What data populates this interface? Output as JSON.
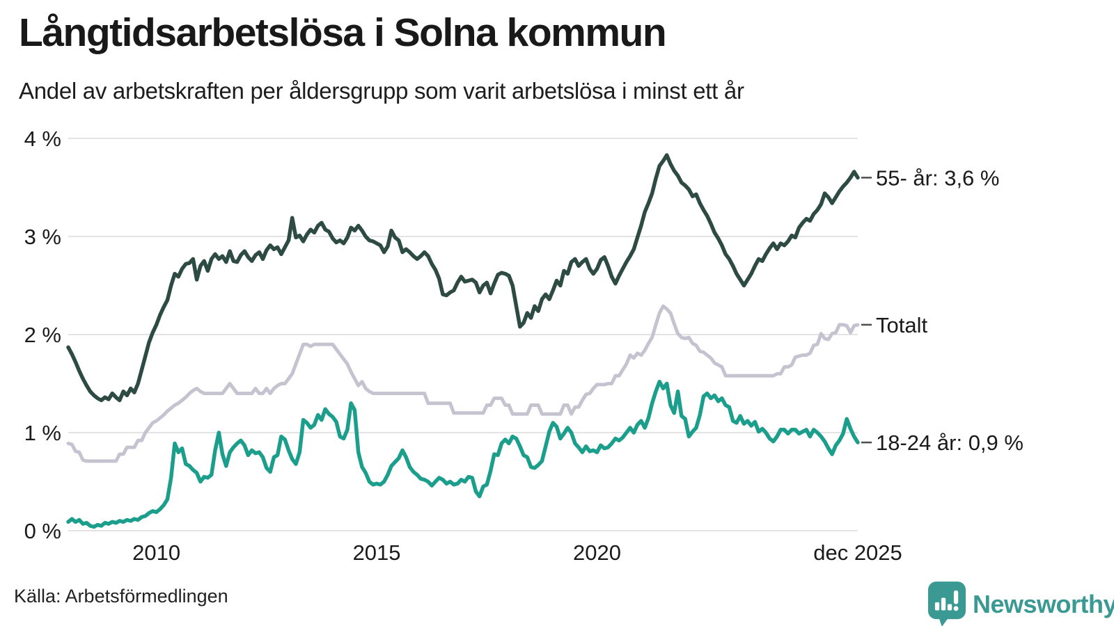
{
  "header": {
    "title": "Långtidsarbetslösa i Solna kommun",
    "subtitle": "Andel av arbetskraften per åldersgrupp som varit arbetslösa i minst ett år"
  },
  "footer": {
    "source": "Källa: Arbetsförmedlingen",
    "brand": "Newsworthy",
    "brand_color": "#3a9a93"
  },
  "chart_data": {
    "type": "line",
    "title": "Långtidsarbetslösa i Solna kommun",
    "xlabel": "",
    "ylabel": "",
    "ylim": [
      0,
      4
    ],
    "grid": true,
    "grid_color": "#e3e3e6",
    "tick_color": "#1a1a1a",
    "end_label_dash_color": "#4d4d4d",
    "x_start_year": 2008.0,
    "x_end_year": 2025.9167,
    "x_ticks": [
      {
        "label": "2010",
        "year": 2010
      },
      {
        "label": "2015",
        "year": 2015
      },
      {
        "label": "2020",
        "year": 2020
      },
      {
        "label": "dec 2025",
        "year": 2025.9167
      }
    ],
    "y_ticks": [
      {
        "label": "0 %",
        "value": 0
      },
      {
        "label": "1 %",
        "value": 1
      },
      {
        "label": "2 %",
        "value": 2
      },
      {
        "label": "3 %",
        "value": 3
      },
      {
        "label": "4 %",
        "value": 4
      }
    ],
    "series": [
      {
        "name": "Totalt",
        "end_label": "Totalt",
        "color": "#c6c3d0",
        "width": 5,
        "values": [
          0.89,
          0.88,
          0.81,
          0.8,
          0.72,
          0.71,
          0.71,
          0.71,
          0.71,
          0.71,
          0.71,
          0.71,
          0.71,
          0.71,
          0.78,
          0.78,
          0.85,
          0.85,
          0.85,
          0.92,
          0.92,
          1.0,
          1.05,
          1.1,
          1.12,
          1.15,
          1.18,
          1.22,
          1.25,
          1.28,
          1.3,
          1.33,
          1.36,
          1.4,
          1.43,
          1.45,
          1.42,
          1.4,
          1.4,
          1.4,
          1.4,
          1.4,
          1.4,
          1.45,
          1.5,
          1.45,
          1.4,
          1.4,
          1.4,
          1.4,
          1.4,
          1.45,
          1.4,
          1.4,
          1.45,
          1.4,
          1.45,
          1.48,
          1.5,
          1.5,
          1.55,
          1.6,
          1.7,
          1.8,
          1.9,
          1.9,
          1.88,
          1.9,
          1.9,
          1.9,
          1.9,
          1.9,
          1.9,
          1.85,
          1.8,
          1.75,
          1.7,
          1.62,
          1.55,
          1.48,
          1.52,
          1.45,
          1.42,
          1.4,
          1.4,
          1.4,
          1.4,
          1.4,
          1.4,
          1.4,
          1.4,
          1.4,
          1.4,
          1.4,
          1.4,
          1.4,
          1.4,
          1.4,
          1.3,
          1.3,
          1.3,
          1.3,
          1.3,
          1.3,
          1.3,
          1.2,
          1.2,
          1.2,
          1.2,
          1.2,
          1.2,
          1.2,
          1.2,
          1.2,
          1.28,
          1.28,
          1.35,
          1.35,
          1.35,
          1.28,
          1.28,
          1.19,
          1.19,
          1.19,
          1.19,
          1.19,
          1.28,
          1.28,
          1.28,
          1.19,
          1.19,
          1.19,
          1.19,
          1.19,
          1.19,
          1.28,
          1.28,
          1.19,
          1.26,
          1.26,
          1.33,
          1.39,
          1.4,
          1.45,
          1.49,
          1.49,
          1.49,
          1.5,
          1.5,
          1.58,
          1.58,
          1.64,
          1.7,
          1.79,
          1.76,
          1.81,
          1.79,
          1.84,
          1.91,
          1.97,
          2.1,
          2.22,
          2.29,
          2.26,
          2.22,
          2.11,
          2.01,
          1.97,
          1.96,
          1.97,
          1.91,
          1.89,
          1.83,
          1.82,
          1.79,
          1.76,
          1.71,
          1.69,
          1.67,
          1.58,
          1.58,
          1.58,
          1.58,
          1.58,
          1.58,
          1.58,
          1.58,
          1.58,
          1.58,
          1.58,
          1.58,
          1.58,
          1.58,
          1.6,
          1.6,
          1.67,
          1.67,
          1.69,
          1.77,
          1.78,
          1.79,
          1.79,
          1.81,
          1.89,
          1.9,
          2.01,
          1.96,
          1.95,
          2.01,
          2.02,
          2.1,
          2.1,
          2.09,
          2.02,
          2.09,
          2.1
        ]
      },
      {
        "name": "18-24 år",
        "end_label": "18-24 år: 0,9 %",
        "color": "#1b9e8b",
        "width": 5.5,
        "values": [
          0.09,
          0.12,
          0.09,
          0.11,
          0.07,
          0.08,
          0.05,
          0.04,
          0.06,
          0.05,
          0.08,
          0.07,
          0.09,
          0.08,
          0.1,
          0.09,
          0.11,
          0.1,
          0.12,
          0.11,
          0.14,
          0.15,
          0.18,
          0.2,
          0.19,
          0.22,
          0.26,
          0.32,
          0.54,
          0.89,
          0.8,
          0.84,
          0.68,
          0.66,
          0.62,
          0.59,
          0.5,
          0.55,
          0.54,
          0.57,
          0.82,
          1.0,
          0.78,
          0.66,
          0.8,
          0.85,
          0.89,
          0.92,
          0.87,
          0.77,
          0.82,
          0.79,
          0.8,
          0.75,
          0.64,
          0.6,
          0.75,
          0.77,
          0.96,
          0.93,
          0.82,
          0.73,
          0.68,
          0.8,
          1.13,
          1.1,
          1.05,
          1.08,
          1.18,
          1.13,
          1.24,
          1.19,
          1.16,
          1.11,
          0.96,
          0.94,
          1.03,
          1.3,
          1.23,
          0.8,
          0.65,
          0.59,
          0.5,
          0.47,
          0.48,
          0.47,
          0.5,
          0.57,
          0.66,
          0.7,
          0.74,
          0.82,
          0.75,
          0.65,
          0.6,
          0.57,
          0.53,
          0.52,
          0.5,
          0.46,
          0.5,
          0.54,
          0.52,
          0.48,
          0.5,
          0.47,
          0.48,
          0.52,
          0.5,
          0.55,
          0.54,
          0.4,
          0.35,
          0.45,
          0.47,
          0.61,
          0.78,
          0.77,
          0.89,
          0.93,
          0.89,
          0.96,
          0.94,
          0.86,
          0.77,
          0.75,
          0.65,
          0.64,
          0.67,
          0.71,
          0.86,
          1.01,
          1.1,
          1.06,
          0.94,
          0.99,
          1.05,
          1.0,
          0.89,
          0.85,
          0.8,
          0.86,
          0.81,
          0.82,
          0.8,
          0.87,
          0.84,
          0.85,
          0.89,
          0.94,
          0.92,
          0.95,
          1.0,
          1.05,
          1.0,
          1.08,
          1.12,
          1.05,
          1.15,
          1.3,
          1.42,
          1.52,
          1.45,
          1.5,
          1.28,
          1.2,
          1.42,
          1.17,
          1.14,
          0.96,
          1.01,
          1.05,
          1.18,
          1.37,
          1.4,
          1.35,
          1.38,
          1.32,
          1.35,
          1.28,
          1.26,
          1.12,
          1.1,
          1.17,
          1.09,
          1.12,
          1.07,
          1.11,
          1.01,
          1.04,
          1.0,
          0.94,
          0.91,
          0.96,
          1.03,
          1.03,
          0.99,
          1.03,
          1.03,
          0.99,
          1.01,
          1.03,
          0.96,
          1.03,
          1.0,
          0.96,
          0.91,
          0.84,
          0.78,
          0.87,
          0.92,
          0.99,
          1.14,
          1.04,
          0.96,
          0.9
        ]
      },
      {
        "name": "55- år",
        "end_label": "55- år: 3,6 %",
        "color": "#2d4b42",
        "width": 5.5,
        "values": [
          1.87,
          1.8,
          1.72,
          1.63,
          1.55,
          1.48,
          1.42,
          1.38,
          1.35,
          1.33,
          1.36,
          1.34,
          1.4,
          1.36,
          1.33,
          1.42,
          1.38,
          1.45,
          1.41,
          1.5,
          1.64,
          1.78,
          1.92,
          2.02,
          2.1,
          2.2,
          2.28,
          2.35,
          2.5,
          2.62,
          2.59,
          2.67,
          2.72,
          2.73,
          2.77,
          2.56,
          2.7,
          2.75,
          2.65,
          2.77,
          2.82,
          2.77,
          2.8,
          2.74,
          2.85,
          2.75,
          2.74,
          2.81,
          2.85,
          2.79,
          2.75,
          2.81,
          2.84,
          2.77,
          2.86,
          2.91,
          2.87,
          2.89,
          2.82,
          2.89,
          2.96,
          3.19,
          2.99,
          3.01,
          2.95,
          3.02,
          3.07,
          3.04,
          3.11,
          3.14,
          3.07,
          3.05,
          2.98,
          2.94,
          2.96,
          2.93,
          2.99,
          3.09,
          3.06,
          3.11,
          3.06,
          3.0,
          2.96,
          2.95,
          2.93,
          2.91,
          2.84,
          2.9,
          3.06,
          2.99,
          2.96,
          2.84,
          2.87,
          2.84,
          2.8,
          2.77,
          2.8,
          2.84,
          2.8,
          2.72,
          2.66,
          2.57,
          2.41,
          2.4,
          2.43,
          2.45,
          2.53,
          2.59,
          2.54,
          2.55,
          2.56,
          2.53,
          2.43,
          2.5,
          2.53,
          2.42,
          2.52,
          2.61,
          2.63,
          2.62,
          2.6,
          2.5,
          2.29,
          2.08,
          2.12,
          2.22,
          2.17,
          2.29,
          2.24,
          2.36,
          2.41,
          2.36,
          2.45,
          2.55,
          2.5,
          2.65,
          2.62,
          2.74,
          2.77,
          2.7,
          2.74,
          2.77,
          2.67,
          2.62,
          2.67,
          2.76,
          2.79,
          2.7,
          2.59,
          2.52,
          2.6,
          2.67,
          2.74,
          2.8,
          2.87,
          2.99,
          3.11,
          3.25,
          3.34,
          3.44,
          3.59,
          3.72,
          3.77,
          3.83,
          3.74,
          3.67,
          3.62,
          3.55,
          3.52,
          3.48,
          3.41,
          3.43,
          3.34,
          3.27,
          3.21,
          3.13,
          3.04,
          2.98,
          2.91,
          2.82,
          2.77,
          2.7,
          2.62,
          2.56,
          2.5,
          2.56,
          2.62,
          2.7,
          2.77,
          2.75,
          2.82,
          2.88,
          2.93,
          2.87,
          2.93,
          2.91,
          2.95,
          3.01,
          2.99,
          3.09,
          3.14,
          3.18,
          3.16,
          3.23,
          3.27,
          3.33,
          3.44,
          3.4,
          3.34,
          3.4,
          3.46,
          3.51,
          3.55,
          3.6,
          3.66,
          3.6
        ]
      }
    ]
  }
}
